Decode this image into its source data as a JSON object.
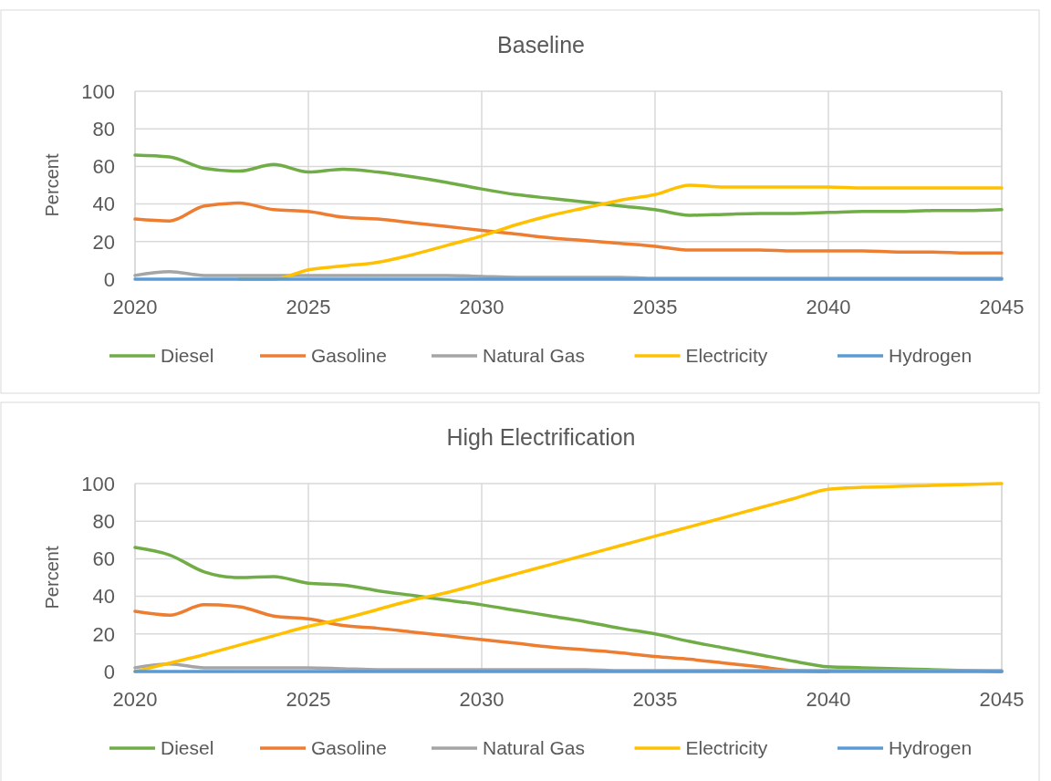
{
  "chart_data": [
    {
      "type": "line",
      "title": "Baseline",
      "ylabel": "Percent",
      "x": [
        2020,
        2021,
        2022,
        2023,
        2024,
        2025,
        2026,
        2027,
        2028,
        2029,
        2030,
        2031,
        2032,
        2033,
        2034,
        2035,
        2036,
        2037,
        2038,
        2039,
        2040,
        2041,
        2042,
        2043,
        2044,
        2045
      ],
      "xlim": [
        2020,
        2045
      ],
      "xticks": [
        2020,
        2025,
        2030,
        2035,
        2040,
        2045
      ],
      "ylim": [
        0,
        100
      ],
      "yticks": [
        0,
        20,
        40,
        60,
        80,
        100
      ],
      "grid": true,
      "legend": "bottom",
      "marker": "none",
      "series": [
        {
          "name": "Diesel",
          "color": "#70ad47",
          "values": [
            66,
            65,
            59,
            57.5,
            61,
            57,
            58.5,
            57,
            54.5,
            51.5,
            48,
            45,
            43,
            41,
            39,
            37,
            34,
            34.5,
            35,
            35,
            35.5,
            36,
            36,
            36.5,
            36.5,
            37
          ]
        },
        {
          "name": "Gasoline",
          "color": "#ed7d31",
          "values": [
            32,
            31,
            39,
            40.5,
            37,
            36,
            33,
            32,
            30,
            28,
            26,
            24,
            22,
            20.5,
            19,
            17.5,
            15.5,
            15.5,
            15.5,
            15,
            15,
            15,
            14.5,
            14.5,
            14,
            14
          ]
        },
        {
          "name": "Natural Gas",
          "color": "#a5a5a5",
          "values": [
            2,
            4,
            2,
            2,
            2,
            2,
            2,
            2,
            2,
            2,
            1.5,
            1,
            1,
            1,
            1,
            0.5,
            0.5,
            0.5,
            0.5,
            0.5,
            0.5,
            0.5,
            0.5,
            0.5,
            0.5,
            0.5
          ]
        },
        {
          "name": "Electricity",
          "color": "#ffc000",
          "values": [
            null,
            null,
            null,
            0,
            0,
            5,
            7,
            9,
            13,
            18,
            23,
            29,
            34,
            38,
            42,
            45,
            50,
            49,
            49,
            49,
            49,
            48.5,
            48.5,
            48.5,
            48.5,
            48.5
          ]
        },
        {
          "name": "Hydrogen",
          "color": "#5b9bd5",
          "values": [
            0,
            0,
            0,
            0,
            0,
            0,
            0,
            0,
            0,
            0,
            0,
            0,
            0,
            0,
            0,
            0,
            0,
            0,
            0,
            0,
            0,
            0,
            0,
            0,
            0,
            0
          ]
        }
      ]
    },
    {
      "type": "line",
      "title": "High Electrification",
      "ylabel": "Percent",
      "x": [
        2020,
        2021,
        2022,
        2023,
        2024,
        2025,
        2026,
        2027,
        2028,
        2029,
        2030,
        2031,
        2032,
        2033,
        2034,
        2035,
        2036,
        2037,
        2038,
        2039,
        2040,
        2041,
        2042,
        2043,
        2044,
        2045
      ],
      "xlim": [
        2020,
        2045
      ],
      "xticks": [
        2020,
        2025,
        2030,
        2035,
        2040,
        2045
      ],
      "ylim": [
        0,
        100
      ],
      "yticks": [
        0,
        20,
        40,
        60,
        80,
        100
      ],
      "grid": true,
      "legend": "bottom",
      "marker": "none",
      "series": [
        {
          "name": "Diesel",
          "color": "#70ad47",
          "values": [
            66,
            62,
            53,
            50,
            50.5,
            47,
            46,
            43,
            40.5,
            38,
            35.5,
            32.5,
            29.5,
            26.5,
            23,
            20,
            16,
            12.5,
            9,
            5.5,
            2.5,
            2,
            1.5,
            1,
            0.5,
            0
          ]
        },
        {
          "name": "Gasoline",
          "color": "#ed7d31",
          "values": [
            32,
            30,
            35.5,
            34.5,
            29.5,
            28,
            24.5,
            23,
            21,
            19,
            17,
            15,
            13,
            11.5,
            10,
            8,
            6.5,
            4.5,
            2.5,
            0.5,
            0,
            null,
            null,
            null,
            null,
            null
          ]
        },
        {
          "name": "Natural Gas",
          "color": "#a5a5a5",
          "values": [
            2,
            4,
            2,
            2,
            2,
            2,
            1.5,
            1,
            1,
            1,
            1,
            1,
            1,
            1,
            0.5,
            0.5,
            0.5,
            0.5,
            0.5,
            0.5,
            0.5,
            0.5,
            0.5,
            0.5,
            0.5,
            0.5
          ]
        },
        {
          "name": "Electricity",
          "color": "#ffc000",
          "values": [
            0,
            4.5,
            9,
            14,
            19,
            24,
            28,
            33,
            38,
            42,
            47,
            52,
            57,
            62,
            67,
            72,
            77,
            82,
            87,
            92,
            97,
            98,
            98.5,
            99,
            99.5,
            100
          ]
        },
        {
          "name": "Hydrogen",
          "color": "#5b9bd5",
          "values": [
            0,
            0,
            0,
            0,
            0,
            0,
            0,
            0,
            0,
            0,
            0,
            0,
            0,
            0,
            0,
            0,
            0,
            0,
            0,
            0,
            0,
            0,
            0,
            0,
            0,
            0
          ]
        }
      ]
    }
  ]
}
